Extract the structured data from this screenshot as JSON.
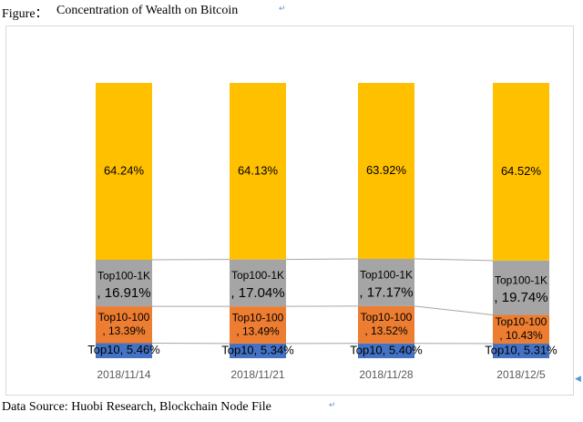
{
  "caption": {
    "prefix": "Figure：",
    "title": "Concentration of Wealth on Bitcoin",
    "mark": "↵"
  },
  "source": {
    "text": "Data Source: Huobi Research, Blockchain Node File",
    "mark": "↵"
  },
  "colors": {
    "top10": "#4472c4",
    "top10_100": "#ed7d31",
    "top100_1k": "#a5a5a5",
    "rest": "#ffc000",
    "connector": "#a6a6a6",
    "axis_text": "#595959"
  },
  "chart_data": {
    "type": "bar",
    "stacked": true,
    "normalized": true,
    "categories": [
      "2018/11/14",
      "2018/11/21",
      "2018/11/28",
      "2018/12/5"
    ],
    "ylim": [
      0,
      100
    ],
    "grid": false,
    "series": [
      {
        "name": "Top10",
        "values": [
          5.46,
          5.34,
          5.4,
          5.31
        ],
        "labels": [
          "Top10, 5.46%",
          "Top10, 5.34%",
          "Top10, 5.40%",
          "Top10, 5.31%"
        ]
      },
      {
        "name": "Top10-100",
        "values": [
          13.39,
          13.49,
          13.52,
          10.43
        ],
        "labels": [
          "Top10-100, 13.39%",
          "Top10-100, 13.49%",
          "Top10-100, 13.52%",
          "Top10-100, 10.43%"
        ]
      },
      {
        "name": "Top100-1K",
        "values": [
          16.91,
          17.04,
          17.17,
          19.74
        ],
        "labels": [
          "Top100-1K, 16.91%",
          "Top100-1K, 17.04%",
          "Top100-1K, 17.17%",
          "Top100-1K, 19.74%"
        ]
      },
      {
        "values": [
          64.24,
          64.13,
          63.92,
          64.52
        ],
        "labels": [
          "64.24%",
          "64.13%",
          "63.92%",
          "64.52%"
        ]
      }
    ]
  }
}
